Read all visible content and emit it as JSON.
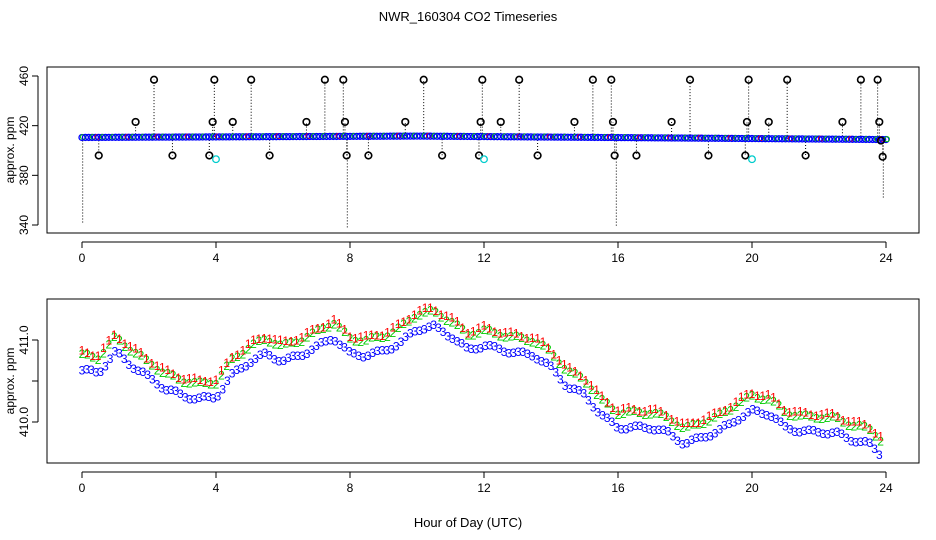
{
  "title": "NWR_160304  CO2 Timeseries",
  "xlabel": "Hour of Day (UTC)",
  "colors": {
    "red": "#ff0000",
    "green": "#00cc00",
    "blue": "#0000ff",
    "cyan": "#00cccc",
    "black": "#000000"
  },
  "chart_data": [
    {
      "type": "scatter",
      "panel": "top",
      "ylabel": "approx. ppm",
      "xlim": [
        0,
        24
      ],
      "ylim": [
        340,
        460
      ],
      "xticks": [
        "0",
        "4",
        "8",
        "12",
        "16",
        "20",
        "24"
      ],
      "yticks": [
        "340",
        "380",
        "420",
        "460"
      ],
      "baseline": {
        "start": 410.5,
        "mid": 411.6,
        "end": 408.8
      },
      "series": [
        {
          "marker": "o",
          "color": "black",
          "points": [
            [
              0.5,
              396
            ],
            [
              1.6,
              423
            ],
            [
              2.15,
              457
            ],
            [
              2.7,
              396
            ],
            [
              3.8,
              396
            ],
            [
              3.9,
              423
            ],
            [
              3.95,
              457
            ],
            [
              4.5,
              423
            ],
            [
              5.05,
              457
            ],
            [
              5.6,
              396
            ],
            [
              6.7,
              423
            ],
            [
              7.25,
              457
            ],
            [
              7.8,
              457
            ],
            [
              7.85,
              423
            ],
            [
              7.9,
              396
            ],
            [
              8.55,
              396
            ],
            [
              9.65,
              423
            ],
            [
              10.2,
              457
            ],
            [
              10.75,
              396
            ],
            [
              11.85,
              396
            ],
            [
              11.9,
              423
            ],
            [
              11.95,
              457
            ],
            [
              12.5,
              423
            ],
            [
              13.05,
              457
            ],
            [
              13.6,
              396
            ],
            [
              14.7,
              423
            ],
            [
              15.25,
              457
            ],
            [
              15.8,
              457
            ],
            [
              15.85,
              423
            ],
            [
              15.9,
              396
            ],
            [
              16.55,
              396
            ],
            [
              17.6,
              423
            ],
            [
              18.15,
              457
            ],
            [
              18.7,
              396
            ],
            [
              19.8,
              396
            ],
            [
              19.85,
              423
            ],
            [
              19.9,
              457
            ],
            [
              20.5,
              423
            ],
            [
              21.05,
              457
            ],
            [
              21.6,
              396
            ],
            [
              22.7,
              423
            ],
            [
              23.25,
              457
            ],
            [
              23.75,
              457
            ],
            [
              23.8,
              423
            ],
            [
              23.85,
              408
            ],
            [
              23.9,
              395
            ]
          ]
        },
        {
          "marker": "o",
          "color": "cyan",
          "points": [
            [
              4.0,
              393
            ],
            [
              12.0,
              393
            ],
            [
              20.0,
              393
            ]
          ]
        }
      ]
    },
    {
      "type": "scatter",
      "panel": "bottom",
      "ylabel": "approx. ppm",
      "xlim": [
        0,
        24
      ],
      "ylim": [
        409.5,
        411.5
      ],
      "xticks": [
        "0",
        "4",
        "8",
        "12",
        "16",
        "20",
        "24"
      ],
      "yticks": [
        "410.0",
        "411.0"
      ],
      "extra_ytick": 410.5,
      "series": [
        {
          "marker": "1",
          "color": "red",
          "offset": 0.1
        },
        {
          "marker": "2",
          "color": "green",
          "offset": 0.06
        },
        {
          "marker": "3",
          "color": "blue",
          "offset": -0.12
        }
      ],
      "x": [
        0,
        0.5,
        1,
        1.5,
        2,
        2.5,
        3,
        3.5,
        4,
        4.5,
        5,
        5.5,
        6,
        6.5,
        7,
        7.5,
        8,
        8.5,
        9,
        9.5,
        10,
        10.5,
        11,
        11.5,
        12,
        12.5,
        13,
        13.5,
        14,
        14.5,
        15,
        15.5,
        16,
        16.5,
        17,
        17.5,
        18,
        18.5,
        19,
        19.5,
        20,
        20.5,
        21,
        21.5,
        22,
        22.5,
        23,
        23.5,
        23.9
      ],
      "y": [
        410.75,
        410.72,
        410.97,
        410.8,
        410.66,
        410.52,
        410.44,
        410.4,
        410.42,
        410.7,
        410.85,
        410.95,
        410.86,
        410.93,
        411.03,
        411.15,
        410.95,
        410.93,
        410.98,
        411.08,
        411.25,
        411.28,
        411.17,
        411.0,
        411.05,
        411.0,
        410.96,
        410.93,
        410.78,
        410.55,
        410.45,
        410.2,
        410.05,
        410.05,
        410.05,
        409.98,
        409.85,
        409.93,
        410.0,
        410.14,
        410.25,
        410.22,
        410.05,
        410.0,
        410.0,
        409.98,
        409.9,
        409.85,
        409.7
      ]
    }
  ]
}
